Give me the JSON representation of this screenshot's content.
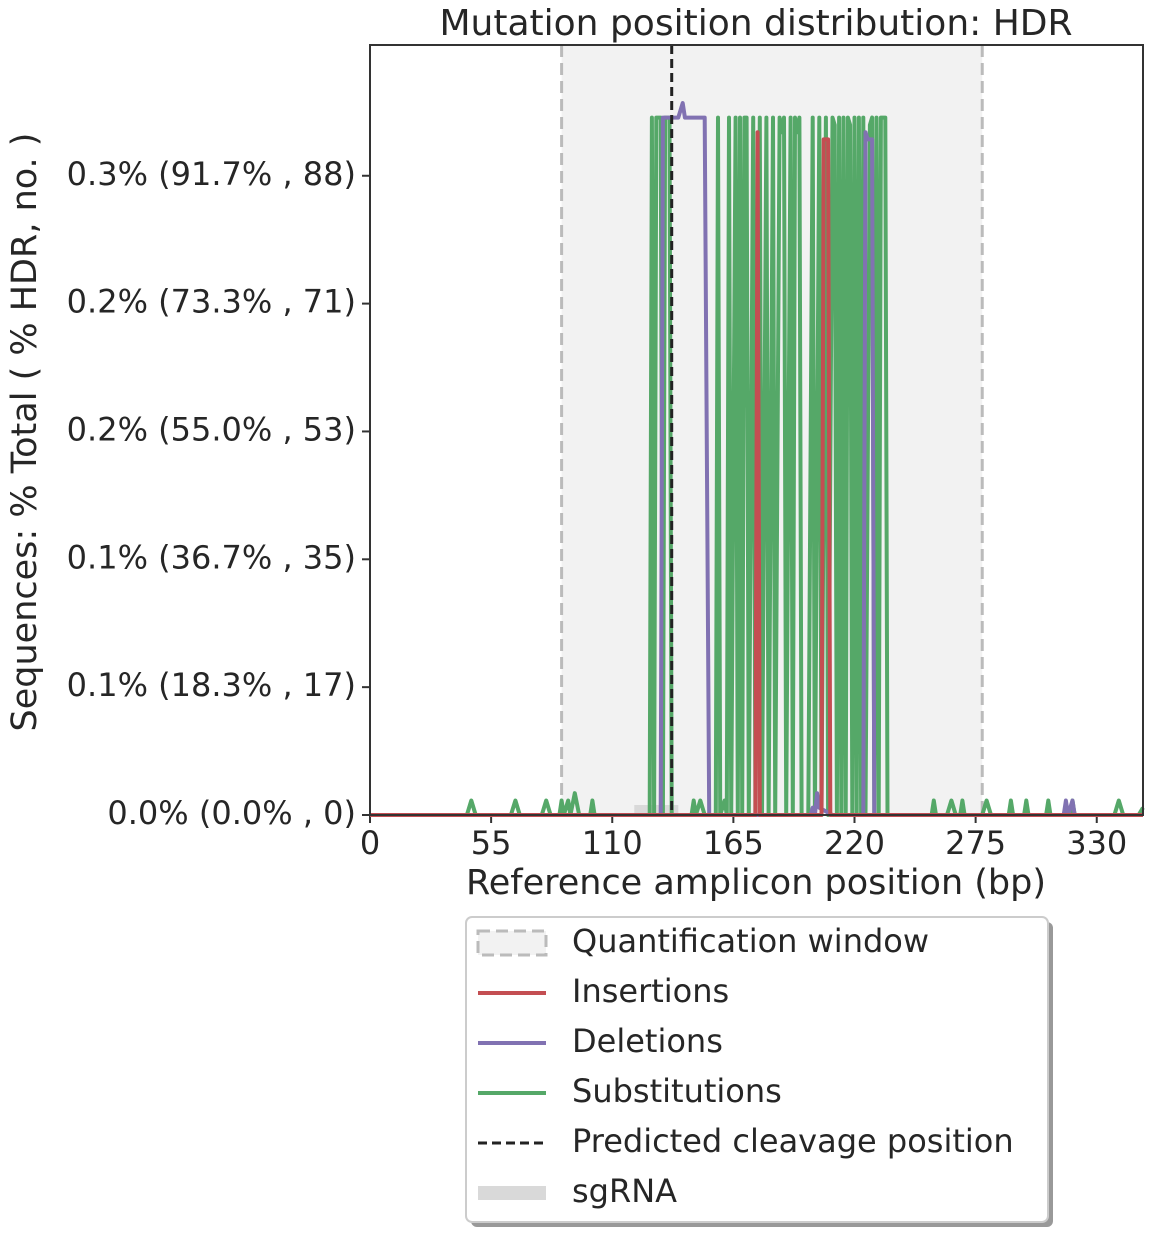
{
  "chart_data": {
    "type": "line",
    "title": "Mutation position distribution: HDR",
    "x_label": "Reference amplicon position (bp)",
    "y_label": "Sequences: % Total ( % HDR, no. )",
    "xlim": [
      0,
      351
    ],
    "xticks": [
      0,
      55,
      110,
      165,
      220,
      275,
      330
    ],
    "ylim": [
      0,
      106
    ],
    "yticks": [
      {
        "value": 0,
        "label": "0.0% (0.0% , 0)"
      },
      {
        "value": 17.6,
        "label": "0.1% (18.3% , 17)"
      },
      {
        "value": 35.2,
        "label": "0.1% (36.7% , 35)"
      },
      {
        "value": 52.8,
        "label": "0.2% (55.0% , 53)"
      },
      {
        "value": 70.4,
        "label": "0.2% (73.3% , 71)"
      },
      {
        "value": 88,
        "label": "0.3% (91.7% , 88)"
      }
    ],
    "legend": "lower center",
    "quantification_window": {
      "label": "Quantification window",
      "range": [
        87,
        278
      ],
      "color": "#bbbbbb"
    },
    "cleavage": {
      "label": "Predicted cleavage position",
      "x": 137,
      "color": "#222222"
    },
    "sgrna": {
      "label": "sgRNA",
      "range": [
        120,
        140
      ],
      "color": "#d9d9d9"
    },
    "series": [
      {
        "name": "Insertions",
        "color": "#c44e52",
        "x": [
          0,
          175,
          176,
          177,
          205,
          206,
          208,
          209,
          351
        ],
        "values": [
          0,
          0,
          94,
          0,
          0,
          93,
          93,
          0,
          0
        ]
      },
      {
        "name": "Deletions",
        "color": "#8172b2",
        "x": [
          0,
          132,
          133,
          138,
          140,
          142,
          143,
          145,
          152,
          154,
          200,
          201,
          202,
          203,
          204,
          210,
          224,
          225,
          226,
          228,
          229,
          315,
          316,
          317,
          319,
          320,
          351
        ],
        "values": [
          0,
          0,
          96,
          96,
          96,
          98,
          96,
          96,
          96,
          0,
          0,
          1,
          0,
          3,
          1,
          0,
          0,
          94,
          93,
          93,
          0,
          0,
          2,
          0,
          2,
          0,
          0
        ]
      },
      {
        "name": "Substitutions",
        "color": "#55a868",
        "x": [
          0,
          44,
          46,
          48,
          64,
          66,
          68,
          78,
          80,
          82,
          86,
          87,
          88,
          90,
          91,
          93,
          95,
          100,
          101,
          102,
          127,
          128,
          129,
          130,
          132,
          133,
          134,
          136,
          137,
          146,
          147,
          148,
          150,
          152,
          157,
          158,
          159,
          161,
          162,
          163,
          164,
          166,
          167,
          168,
          169,
          170,
          171,
          172,
          174,
          175,
          177,
          178,
          180,
          181,
          183,
          184,
          186,
          187,
          188,
          189,
          191,
          192,
          193,
          194,
          195,
          196,
          199,
          201,
          202,
          204,
          205,
          207,
          208,
          210,
          211,
          212,
          213,
          214,
          215,
          216,
          217,
          218,
          219,
          220,
          221,
          222,
          223,
          224,
          225,
          227,
          228,
          229,
          230,
          231,
          232,
          234,
          235,
          255,
          256,
          257,
          262,
          264,
          266,
          268,
          269,
          270,
          278,
          280,
          282,
          290,
          291,
          292,
          297,
          298,
          299,
          307,
          308,
          309,
          318,
          319,
          320,
          338,
          340,
          342,
          349,
          351
        ],
        "values": [
          0,
          0,
          2,
          0,
          0,
          2,
          0,
          0,
          2,
          0,
          0,
          2,
          0,
          2,
          0,
          3,
          0,
          0,
          2,
          0,
          0,
          96,
          0,
          96,
          96,
          0,
          96,
          96,
          0,
          0,
          2,
          0,
          2,
          0,
          0,
          96,
          0,
          2,
          0,
          96,
          0,
          96,
          0,
          96,
          0,
          96,
          96,
          0,
          96,
          0,
          96,
          0,
          96,
          0,
          96,
          0,
          96,
          94,
          96,
          0,
          96,
          0,
          96,
          94,
          96,
          0,
          0,
          96,
          0,
          96,
          0,
          96,
          0,
          96,
          95,
          0,
          96,
          0,
          96,
          0,
          96,
          95,
          0,
          96,
          0,
          96,
          0,
          96,
          0,
          95,
          96,
          0,
          96,
          0,
          96,
          96,
          0,
          0,
          2,
          0,
          0,
          2,
          0,
          0,
          2,
          0,
          0,
          2,
          0,
          0,
          2,
          0,
          0,
          2,
          0,
          0,
          2,
          0,
          0,
          2,
          0,
          0,
          2,
          0,
          0,
          1
        ]
      }
    ]
  }
}
